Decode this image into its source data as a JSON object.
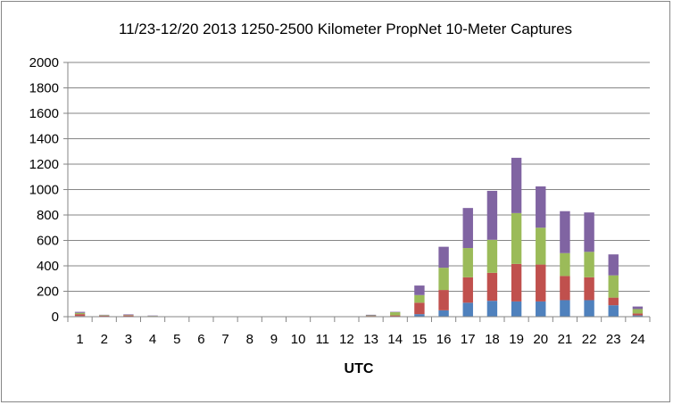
{
  "chart_data": {
    "type": "bar",
    "stacked": true,
    "title": "11/23-12/20 2013 1250-2500 Kilometer PropNet 10-Meter Captures",
    "xlabel": "UTC",
    "ylabel": "",
    "ylim": [
      0,
      2000
    ],
    "yticks": [
      "0",
      "200",
      "400",
      "600",
      "800",
      "1000",
      "1200",
      "1400",
      "1600",
      "1800",
      "2000"
    ],
    "grid": true,
    "legend": "none",
    "categories": [
      "1",
      "2",
      "3",
      "4",
      "5",
      "6",
      "7",
      "8",
      "9",
      "10",
      "11",
      "12",
      "13",
      "14",
      "15",
      "16",
      "17",
      "18",
      "19",
      "20",
      "21",
      "22",
      "23",
      "24"
    ],
    "series": [
      {
        "color": "#4F81BD",
        "values": [
          5,
          2,
          2,
          1,
          0,
          0,
          0,
          0,
          0,
          0,
          0,
          0,
          2,
          3,
          20,
          50,
          110,
          125,
          120,
          120,
          130,
          130,
          90,
          10
        ]
      },
      {
        "color": "#C0504D",
        "values": [
          15,
          6,
          8,
          3,
          0,
          0,
          0,
          0,
          0,
          0,
          0,
          0,
          4,
          7,
          90,
          160,
          200,
          220,
          295,
          290,
          190,
          180,
          60,
          15
        ]
      },
      {
        "color": "#9BBB59",
        "values": [
          10,
          4,
          3,
          2,
          0,
          0,
          0,
          0,
          0,
          0,
          0,
          0,
          4,
          25,
          60,
          175,
          230,
          260,
          400,
          290,
          180,
          200,
          175,
          35
        ]
      },
      {
        "color": "#8064A2",
        "values": [
          8,
          3,
          5,
          3,
          0,
          0,
          0,
          0,
          0,
          0,
          0,
          0,
          5,
          3,
          75,
          165,
          315,
          385,
          435,
          325,
          330,
          310,
          165,
          20
        ]
      }
    ]
  }
}
